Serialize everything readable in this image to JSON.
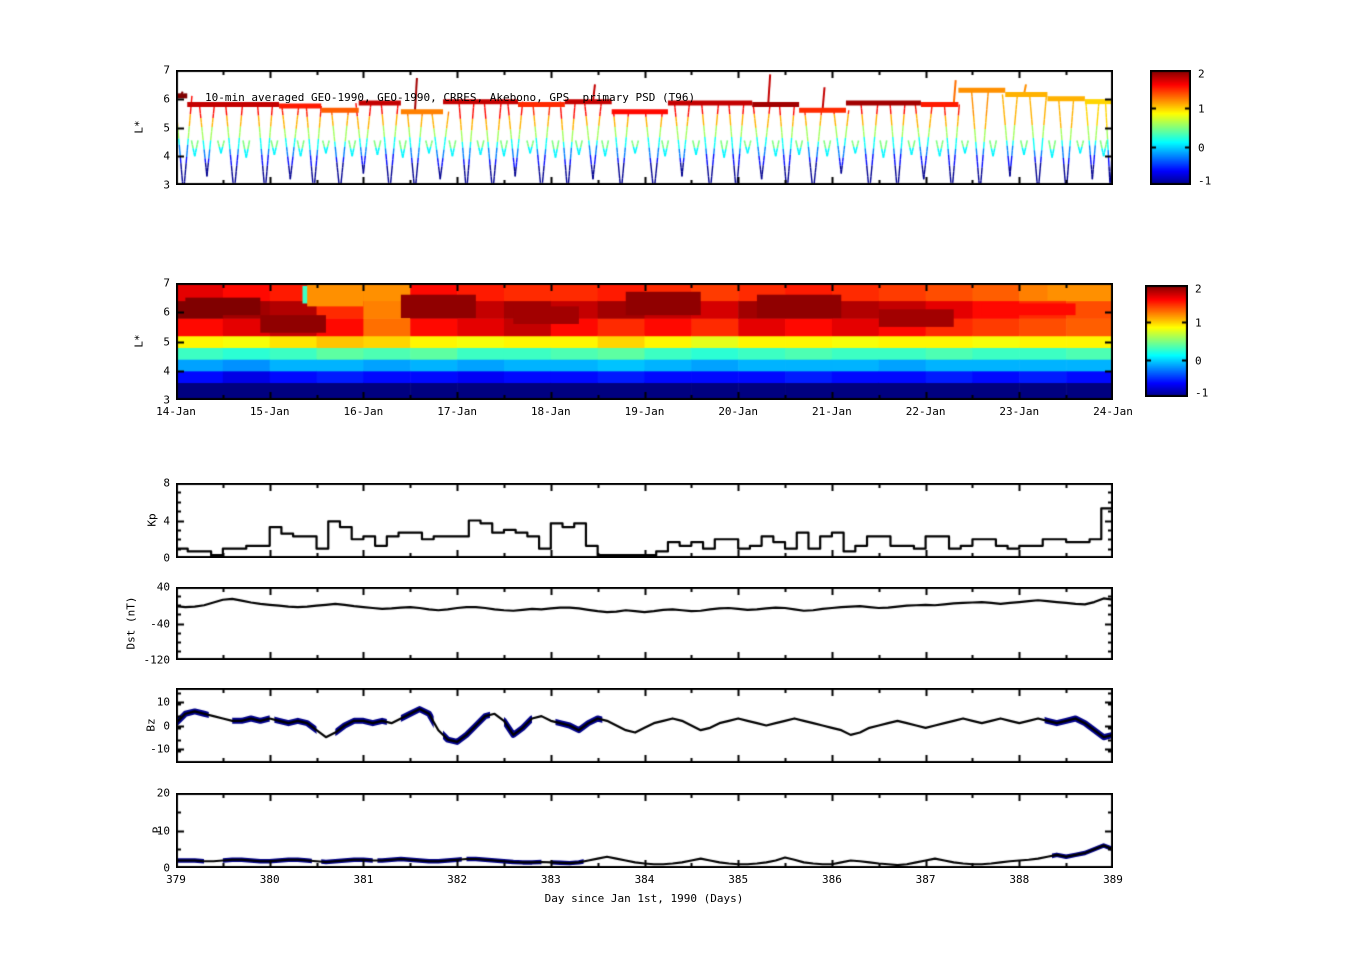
{
  "figure": {
    "background": "#ffffff",
    "line_color": "#000000",
    "highlight_color": "#00008b"
  },
  "chart_data": [
    {
      "id": "psd_tracks",
      "type": "scatter",
      "title": "10-min averaged GEO-1990, GEO-1990, CRRES, Akebono, GPS  primary PSD (T96)",
      "ylabel": "L*",
      "ylim": [
        3,
        7
      ],
      "yticks": [
        7,
        6,
        5,
        4,
        3
      ],
      "xlim": [
        379,
        389
      ],
      "colorbar": {
        "lim": [
          -1,
          2
        ],
        "ticks": [
          2,
          1,
          0,
          -1
        ]
      },
      "band_segments": [
        [
          379.0,
          379.12,
          6.1,
          2.0
        ],
        [
          379.12,
          380.1,
          5.8,
          1.8
        ],
        [
          380.1,
          380.55,
          5.75,
          1.55
        ],
        [
          380.55,
          380.95,
          5.6,
          1.35
        ],
        [
          380.95,
          381.4,
          5.85,
          1.8
        ],
        [
          381.4,
          381.85,
          5.55,
          1.25
        ],
        [
          381.85,
          382.65,
          5.9,
          1.8
        ],
        [
          382.65,
          383.15,
          5.8,
          1.5
        ],
        [
          383.15,
          383.65,
          5.9,
          1.8
        ],
        [
          383.65,
          384.25,
          5.55,
          1.6
        ],
        [
          384.25,
          385.15,
          5.85,
          1.8
        ],
        [
          385.15,
          385.65,
          5.8,
          1.9
        ],
        [
          385.65,
          386.15,
          5.6,
          1.5
        ],
        [
          386.15,
          386.95,
          5.85,
          1.9
        ],
        [
          386.95,
          387.35,
          5.8,
          1.55
        ],
        [
          387.35,
          387.85,
          6.3,
          1.2
        ],
        [
          387.85,
          388.3,
          6.15,
          1.1
        ],
        [
          388.3,
          388.7,
          6.0,
          1.1
        ],
        [
          388.7,
          389.0,
          5.9,
          1.0
        ]
      ],
      "spikes": [
        [
          379.05,
          6.25,
          2.0
        ],
        [
          381.55,
          6.72,
          1.9
        ],
        [
          383.45,
          6.5,
          1.8
        ],
        [
          385.32,
          6.85,
          1.8
        ],
        [
          385.9,
          6.4,
          1.8
        ],
        [
          387.3,
          6.65,
          1.3
        ],
        [
          388.05,
          6.5,
          1.2
        ]
      ],
      "dips": [
        [
          379.08,
          0.09,
          2.7
        ],
        [
          379.33,
          0.08,
          3.3
        ],
        [
          379.62,
          0.09,
          2.7
        ],
        [
          379.95,
          0.08,
          2.7
        ],
        [
          380.22,
          0.09,
          3.2
        ],
        [
          380.47,
          0.08,
          2.7
        ],
        [
          380.75,
          0.09,
          2.7
        ],
        [
          381.0,
          0.08,
          3.4
        ],
        [
          381.28,
          0.09,
          2.7
        ],
        [
          381.55,
          0.08,
          2.7
        ],
        [
          381.82,
          0.09,
          3.2
        ],
        [
          382.1,
          0.08,
          2.7
        ],
        [
          382.38,
          0.09,
          2.7
        ],
        [
          382.62,
          0.08,
          3.3
        ],
        [
          382.9,
          0.09,
          2.7
        ],
        [
          383.18,
          0.08,
          2.7
        ],
        [
          383.45,
          0.09,
          3.2
        ],
        [
          383.75,
          0.08,
          2.7
        ],
        [
          384.1,
          0.09,
          2.7
        ],
        [
          384.4,
          0.08,
          3.3
        ],
        [
          384.7,
          0.09,
          2.7
        ],
        [
          384.98,
          0.08,
          2.7
        ],
        [
          385.25,
          0.09,
          3.2
        ],
        [
          385.52,
          0.08,
          2.7
        ],
        [
          385.8,
          0.09,
          2.7
        ],
        [
          386.1,
          0.08,
          3.4
        ],
        [
          386.4,
          0.09,
          2.7
        ],
        [
          386.7,
          0.08,
          2.7
        ],
        [
          386.98,
          0.09,
          3.2
        ],
        [
          387.28,
          0.08,
          2.7
        ],
        [
          387.58,
          0.09,
          2.7
        ],
        [
          387.9,
          0.08,
          3.3
        ],
        [
          388.2,
          0.09,
          2.7
        ],
        [
          388.5,
          0.08,
          2.7
        ],
        [
          388.78,
          0.07,
          3.2
        ],
        [
          388.97,
          0.05,
          2.9
        ]
      ],
      "vmarks": [
        [
          379.2,
          4.0
        ],
        [
          379.48,
          4.1
        ],
        [
          379.75,
          3.95
        ],
        [
          380.05,
          4.05
        ],
        [
          380.33,
          4.0
        ],
        [
          380.6,
          4.1
        ],
        [
          380.88,
          4.0
        ],
        [
          381.15,
          4.05
        ],
        [
          381.42,
          3.95
        ],
        [
          381.7,
          4.1
        ],
        [
          381.95,
          4.0
        ],
        [
          382.25,
          4.05
        ],
        [
          382.5,
          4.0
        ],
        [
          382.78,
          4.1
        ],
        [
          383.05,
          3.95
        ],
        [
          383.3,
          4.05
        ],
        [
          383.58,
          4.0
        ],
        [
          383.9,
          4.1
        ],
        [
          384.22,
          4.0
        ],
        [
          384.55,
          4.05
        ],
        [
          384.85,
          3.95
        ],
        [
          385.1,
          4.1
        ],
        [
          385.4,
          4.0
        ],
        [
          385.65,
          4.05
        ],
        [
          385.95,
          4.0
        ],
        [
          386.25,
          4.1
        ],
        [
          386.55,
          3.95
        ],
        [
          386.85,
          4.05
        ],
        [
          387.15,
          4.0
        ],
        [
          387.42,
          4.1
        ],
        [
          387.72,
          4.0
        ],
        [
          388.05,
          4.05
        ],
        [
          388.35,
          3.95
        ],
        [
          388.65,
          4.1
        ],
        [
          388.9,
          4.0
        ]
      ]
    },
    {
      "id": "psd_map",
      "type": "heatmap",
      "ylabel": "L*",
      "ylim": [
        3,
        7
      ],
      "yticks": [
        7,
        6,
        5,
        4,
        3
      ],
      "xlim": [
        379,
        389
      ],
      "xtick_labels": [
        "14-Jan",
        "15-Jan",
        "16-Jan",
        "17-Jan",
        "18-Jan",
        "19-Jan",
        "20-Jan",
        "21-Jan",
        "22-Jan",
        "23-Jan",
        "24-Jan"
      ],
      "colorbar": {
        "lim": [
          -1,
          2
        ],
        "ticks": [
          2,
          1,
          0,
          -1
        ]
      },
      "grid": {
        "x0": 379,
        "dx": 0.5,
        "l_edges": [
          3,
          3.6,
          4.0,
          4.4,
          4.8,
          5.2,
          5.8,
          6.4,
          7.0
        ],
        "columns": [
          [
            -1,
            -0.6,
            -0.15,
            0.3,
            0.9,
            1.6,
            2.0,
            1.7
          ],
          [
            -1,
            -0.7,
            -0.2,
            0.25,
            0.85,
            1.7,
            1.9,
            1.6
          ],
          [
            -1,
            -0.6,
            -0.1,
            0.3,
            0.95,
            1.8,
            1.85,
            1.55
          ],
          [
            -1,
            -0.55,
            -0.1,
            0.4,
            1.05,
            1.6,
            1.5,
            1.25
          ],
          [
            -1,
            -0.6,
            -0.15,
            0.35,
            1.0,
            1.3,
            1.25,
            1.2
          ],
          [
            -1,
            -0.6,
            -0.1,
            0.4,
            0.9,
            1.6,
            1.85,
            1.6
          ],
          [
            -1,
            -0.65,
            -0.15,
            0.3,
            0.85,
            1.7,
            1.8,
            1.55
          ],
          [
            -1,
            -0.6,
            -0.1,
            0.3,
            0.9,
            1.8,
            1.9,
            1.5
          ],
          [
            -1,
            -0.6,
            -0.1,
            0.35,
            0.9,
            1.6,
            1.8,
            1.5
          ],
          [
            -1,
            -0.55,
            -0.05,
            0.4,
            1.0,
            1.5,
            1.9,
            1.55
          ],
          [
            -1,
            -0.6,
            -0.1,
            0.3,
            0.9,
            1.6,
            1.8,
            1.5
          ],
          [
            -1,
            -0.6,
            -0.15,
            0.25,
            0.8,
            1.5,
            1.75,
            1.45
          ],
          [
            -1,
            -0.6,
            -0.1,
            0.3,
            0.9,
            1.7,
            1.9,
            1.5
          ],
          [
            -1,
            -0.55,
            -0.1,
            0.35,
            0.9,
            1.6,
            1.95,
            1.55
          ],
          [
            -1,
            -0.6,
            -0.1,
            0.3,
            0.85,
            1.7,
            1.85,
            1.5
          ],
          [
            -1,
            -0.6,
            -0.15,
            0.3,
            0.9,
            1.6,
            1.8,
            1.45
          ],
          [
            -1,
            -0.55,
            -0.1,
            0.35,
            0.9,
            1.5,
            1.7,
            1.4
          ],
          [
            -1,
            -0.6,
            -0.1,
            0.3,
            0.85,
            1.45,
            1.6,
            1.35
          ],
          [
            -1,
            -0.55,
            -0.1,
            0.3,
            0.9,
            1.4,
            1.5,
            1.25
          ],
          [
            -1,
            -0.6,
            -0.1,
            0.35,
            0.9,
            1.35,
            1.4,
            1.15
          ]
        ]
      },
      "blobs": [
        [
          379.1,
          379.9,
          5.9,
          6.5,
          2.0
        ],
        [
          379.9,
          380.6,
          5.3,
          5.9,
          1.95
        ],
        [
          380.35,
          380.5,
          6.3,
          6.9,
          0.3
        ],
        [
          380.4,
          381.0,
          6.2,
          7.0,
          1.2
        ],
        [
          381.4,
          382.2,
          5.8,
          6.6,
          1.95
        ],
        [
          382.6,
          383.3,
          5.6,
          6.2,
          1.9
        ],
        [
          383.8,
          384.6,
          5.9,
          6.7,
          1.95
        ],
        [
          385.2,
          386.1,
          5.8,
          6.6,
          1.95
        ],
        [
          386.5,
          387.3,
          5.5,
          6.1,
          1.9
        ],
        [
          387.6,
          388.6,
          5.9,
          6.3,
          1.6
        ],
        [
          388.3,
          389.0,
          6.4,
          7.0,
          1.2
        ]
      ]
    },
    {
      "id": "kp",
      "type": "step",
      "ylabel": "Kp",
      "ylim": [
        0,
        8
      ],
      "yticks": [
        8,
        4,
        0
      ],
      "minor_dy": 1,
      "xlim": [
        379,
        389
      ],
      "x0": 379,
      "dt": 0.125,
      "values": [
        1.0,
        0.7,
        0.7,
        0.3,
        1.0,
        1.0,
        1.3,
        1.3,
        3.3,
        2.6,
        2.3,
        2.3,
        1.0,
        3.9,
        3.3,
        2.0,
        2.3,
        1.3,
        2.3,
        2.7,
        2.7,
        2.0,
        2.3,
        2.3,
        2.3,
        4.0,
        3.7,
        2.7,
        3.0,
        2.7,
        2.3,
        1.0,
        3.7,
        3.3,
        3.7,
        1.3,
        0.3,
        0.3,
        0.3,
        0.3,
        0.3,
        0.7,
        1.7,
        1.3,
        1.7,
        1.0,
        2.0,
        2.0,
        1.0,
        1.3,
        2.3,
        1.7,
        1.0,
        2.7,
        1.0,
        2.3,
        2.7,
        0.7,
        1.3,
        2.3,
        2.3,
        1.3,
        1.3,
        1.0,
        2.3,
        2.3,
        1.0,
        1.3,
        2.0,
        2.0,
        1.3,
        1.0,
        1.3,
        1.3,
        2.0,
        2.0,
        1.7,
        1.7,
        2.0,
        5.3
      ]
    },
    {
      "id": "dst",
      "type": "line",
      "ylabel": "Dst (nT)",
      "ylim": [
        -120,
        40
      ],
      "yticks": [
        40,
        -40,
        -120
      ],
      "minor_dy": 20,
      "xlim": [
        379,
        389
      ],
      "x0": 379,
      "dt": 0.1,
      "values": [
        -2,
        -4,
        -3,
        0,
        6,
        12,
        14,
        10,
        6,
        3,
        1,
        -1,
        -3,
        -4,
        -3,
        -1,
        1,
        3,
        1,
        -2,
        -4,
        -6,
        -8,
        -7,
        -5,
        -4,
        -6,
        -9,
        -11,
        -9,
        -6,
        -4,
        -4,
        -6,
        -9,
        -11,
        -12,
        -10,
        -8,
        -9,
        -7,
        -5,
        -5,
        -7,
        -10,
        -13,
        -15,
        -14,
        -11,
        -13,
        -15,
        -13,
        -10,
        -9,
        -11,
        -13,
        -12,
        -9,
        -7,
        -6,
        -8,
        -10,
        -9,
        -7,
        -5,
        -6,
        -9,
        -12,
        -11,
        -8,
        -6,
        -4,
        -3,
        -2,
        -4,
        -6,
        -5,
        -3,
        -1,
        0,
        1,
        0,
        2,
        4,
        5,
        6,
        7,
        5,
        3,
        5,
        7,
        9,
        11,
        9,
        7,
        5,
        3,
        2,
        7,
        15,
        12
      ]
    },
    {
      "id": "bz",
      "type": "line",
      "ylabel": "Bz",
      "ylim": [
        -16,
        16
      ],
      "yticks": [
        10,
        0,
        -10
      ],
      "minor_dy": 5,
      "xlim": [
        379,
        389
      ],
      "x0": 379,
      "dt": 0.1,
      "highlight_segments": [
        [
          379.0,
          379.35
        ],
        [
          379.6,
          380.0
        ],
        [
          380.05,
          380.5
        ],
        [
          380.7,
          381.25
        ],
        [
          381.4,
          381.75
        ],
        [
          381.85,
          382.35
        ],
        [
          382.5,
          382.8
        ],
        [
          383.05,
          383.55
        ],
        [
          388.27,
          389.0
        ]
      ],
      "values": [
        1,
        5,
        6,
        5,
        4,
        3,
        2,
        2,
        3,
        2,
        3,
        2,
        1,
        2,
        1,
        -2,
        -5,
        -3,
        0,
        2,
        2,
        1,
        2,
        1,
        3,
        5,
        7,
        5,
        -2,
        -6,
        -7,
        -4,
        0,
        4,
        5,
        2,
        -4,
        -1,
        3,
        4,
        2,
        1,
        0,
        -2,
        1,
        3,
        2,
        0,
        -2,
        -3,
        -1,
        1,
        2,
        3,
        2,
        0,
        -2,
        -1,
        1,
        2,
        3,
        2,
        1,
        0,
        1,
        2,
        3,
        2,
        1,
        0,
        -1,
        -2,
        -4,
        -3,
        -1,
        0,
        1,
        2,
        1,
        0,
        -1,
        0,
        1,
        2,
        3,
        2,
        1,
        2,
        3,
        2,
        1,
        2,
        3,
        2,
        1,
        2,
        3,
        1,
        -2,
        -5,
        -4
      ]
    },
    {
      "id": "p",
      "type": "line",
      "ylabel": "P",
      "ylim": [
        0,
        20
      ],
      "yticks": [
        20,
        10,
        0
      ],
      "minor_dy": 5,
      "xlim": [
        379,
        389
      ],
      "x0": 379,
      "dt": 0.1,
      "xticks": [
        379,
        380,
        381,
        382,
        383,
        384,
        385,
        386,
        387,
        388,
        389
      ],
      "xlabel": "Day since Jan 1st, 1990 (Days)",
      "highlight_segments": [
        [
          379.0,
          379.3
        ],
        [
          379.5,
          380.45
        ],
        [
          380.55,
          381.1
        ],
        [
          381.15,
          382.05
        ],
        [
          382.1,
          382.9
        ],
        [
          383.0,
          383.35
        ],
        [
          388.35,
          389.0
        ]
      ],
      "values": [
        2,
        2,
        2,
        1.8,
        1.8,
        2,
        2.2,
        2.2,
        2,
        1.8,
        1.8,
        2,
        2.2,
        2.2,
        2,
        1.8,
        1.6,
        1.8,
        2,
        2.2,
        2.2,
        2,
        2,
        2.2,
        2.4,
        2.2,
        2,
        1.8,
        1.8,
        2,
        2.2,
        2.4,
        2.4,
        2.2,
        2,
        1.8,
        1.6,
        1.5,
        1.5,
        1.6,
        1.5,
        1.4,
        1.3,
        1.5,
        2,
        2.5,
        3,
        2.5,
        2,
        1.5,
        1.2,
        1,
        1,
        1.2,
        1.5,
        2,
        2.5,
        2,
        1.5,
        1.2,
        1,
        1,
        1.2,
        1.5,
        2,
        2.8,
        2.2,
        1.5,
        1.2,
        1,
        1,
        1.5,
        2,
        1.8,
        1.5,
        1.2,
        1,
        0.8,
        1,
        1.5,
        2,
        2.5,
        2,
        1.5,
        1.2,
        1,
        1,
        1.2,
        1.5,
        1.8,
        2,
        2.2,
        2.5,
        3,
        3.5,
        3,
        3.5,
        4,
        5,
        6,
        5
      ]
    }
  ]
}
